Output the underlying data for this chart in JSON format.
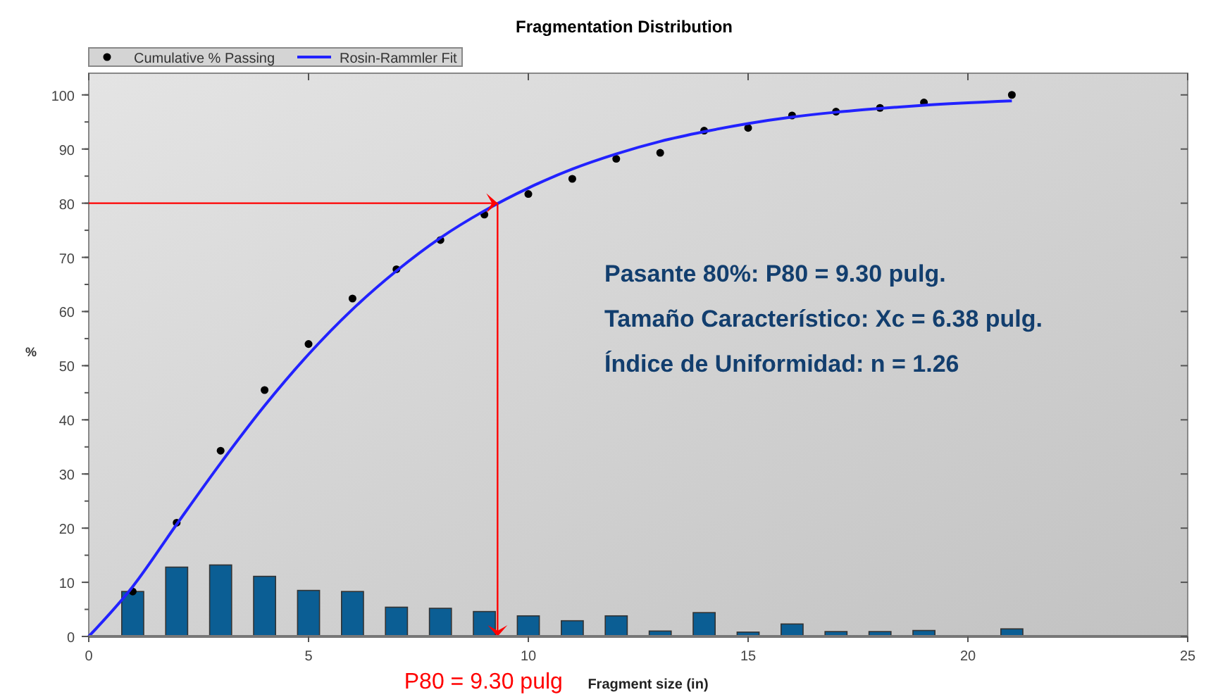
{
  "chart_data": {
    "type": "scatter",
    "title": "Fragmentation Distribution",
    "xlabel": "Fragment size (in)",
    "ylabel": "%",
    "xlim": [
      0,
      25
    ],
    "xticks": [
      0,
      5,
      10,
      15,
      20,
      25
    ],
    "ylim": [
      0,
      104
    ],
    "yticks": [
      0,
      10,
      20,
      30,
      40,
      50,
      60,
      70,
      80,
      90,
      100
    ],
    "grid": false,
    "legend": "top left",
    "series": [
      {
        "type": "bar",
        "color": "#0b5e94",
        "x": [
          1,
          2,
          3,
          4,
          5,
          6,
          7,
          8,
          9,
          10,
          11,
          12,
          13,
          14,
          15,
          16,
          17,
          18,
          19,
          21
        ],
        "values": [
          8.3,
          12.8,
          13.2,
          11.1,
          8.5,
          8.3,
          5.4,
          5.2,
          4.6,
          3.8,
          2.9,
          3.8,
          1.0,
          4.4,
          0.8,
          2.3,
          0.9,
          0.9,
          1.1,
          1.4
        ]
      },
      {
        "name": "Cumulative % Passing",
        "marker": "circle",
        "color": "#000000",
        "x": [
          1,
          2,
          3,
          4,
          5,
          6,
          7,
          8,
          9,
          10,
          11,
          12,
          13,
          14,
          15,
          16,
          17,
          18,
          19,
          21
        ],
        "values": [
          8.3,
          21,
          34.3,
          45.5,
          54,
          62.4,
          67.8,
          73.2,
          77.9,
          81.7,
          84.5,
          88.2,
          89.3,
          93.4,
          93.9,
          96.2,
          96.9,
          97.6,
          98.6,
          100
        ]
      },
      {
        "type": "line",
        "name": "Rosin-Rammler Fit",
        "color": "#2222ff",
        "x": [
          0,
          1,
          2,
          3,
          4,
          5,
          6,
          7,
          8,
          9,
          10,
          11,
          12,
          13,
          14,
          15,
          16,
          17,
          18,
          19,
          21
        ],
        "values": [
          0,
          9.2,
          20.7,
          32.0,
          42.6,
          52.1,
          60.4,
          67.5,
          73.6,
          78.6,
          82.8,
          86.3,
          89.1,
          91.4,
          93.2,
          94.7,
          95.9,
          96.8,
          97.5,
          98.1,
          98.9
        ]
      }
    ],
    "ref_lines": [
      {
        "axis": "y",
        "value": 80,
        "color": "#ff0000"
      },
      {
        "axis": "x",
        "value": 9.3,
        "label": "P80 = 9.30 pulg",
        "color": "#ff0000"
      }
    ],
    "annotations": [
      "Pasante 80%:  P80 = 9.30 pulg.",
      "Tamaño Característico:  Xc = 6.38 pulg.",
      "Índice de Uniformidad:   n = 1.26"
    ]
  }
}
